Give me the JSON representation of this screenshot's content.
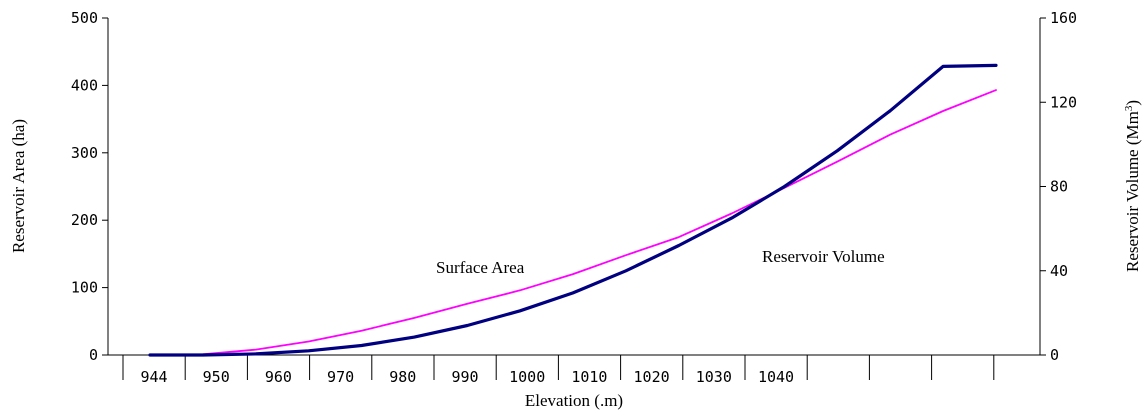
{
  "chart_data": {
    "type": "line",
    "title": "",
    "xlabel": "Elevation (.m)",
    "ylabel_left": "Reservoir Area (ha)",
    "ylabel_right_text": "Reservoir Volume (Mm",
    "ylabel_right_sup": "3",
    "ylabel_right_close": ")",
    "x_tick_labels": [
      "944",
      "950",
      "960",
      "970",
      "980",
      "990",
      "1000",
      "1010",
      "1020",
      "1030",
      "1040"
    ],
    "y_left_ticks": [
      "0",
      "100",
      "200",
      "300",
      "400",
      "500"
    ],
    "y_right_ticks": [
      "0",
      "40",
      "80",
      "120",
      "160"
    ],
    "ylim_left": [
      0,
      500
    ],
    "ylim_right": [
      0,
      160
    ],
    "grid": false,
    "series": [
      {
        "name": "Surface Area",
        "axis": "left",
        "color": "#ff00ff",
        "values": [
          0,
          1,
          8,
          20,
          36,
          55,
          76,
          96,
          120,
          148,
          175,
          210,
          248,
          287,
          327,
          362,
          393
        ]
      },
      {
        "name": "Reservoir Volume",
        "axis": "right",
        "color": "#000080",
        "values": [
          0,
          0,
          0.5,
          2,
          4.5,
          8.5,
          14,
          21,
          29.5,
          40,
          52,
          65,
          80,
          97,
          116,
          137,
          137.5
        ]
      }
    ],
    "annotations": [
      {
        "text": "Surface Area",
        "series": "Surface Area"
      },
      {
        "text": "Reservoir Volume",
        "series": "Reservoir Volume"
      }
    ]
  }
}
